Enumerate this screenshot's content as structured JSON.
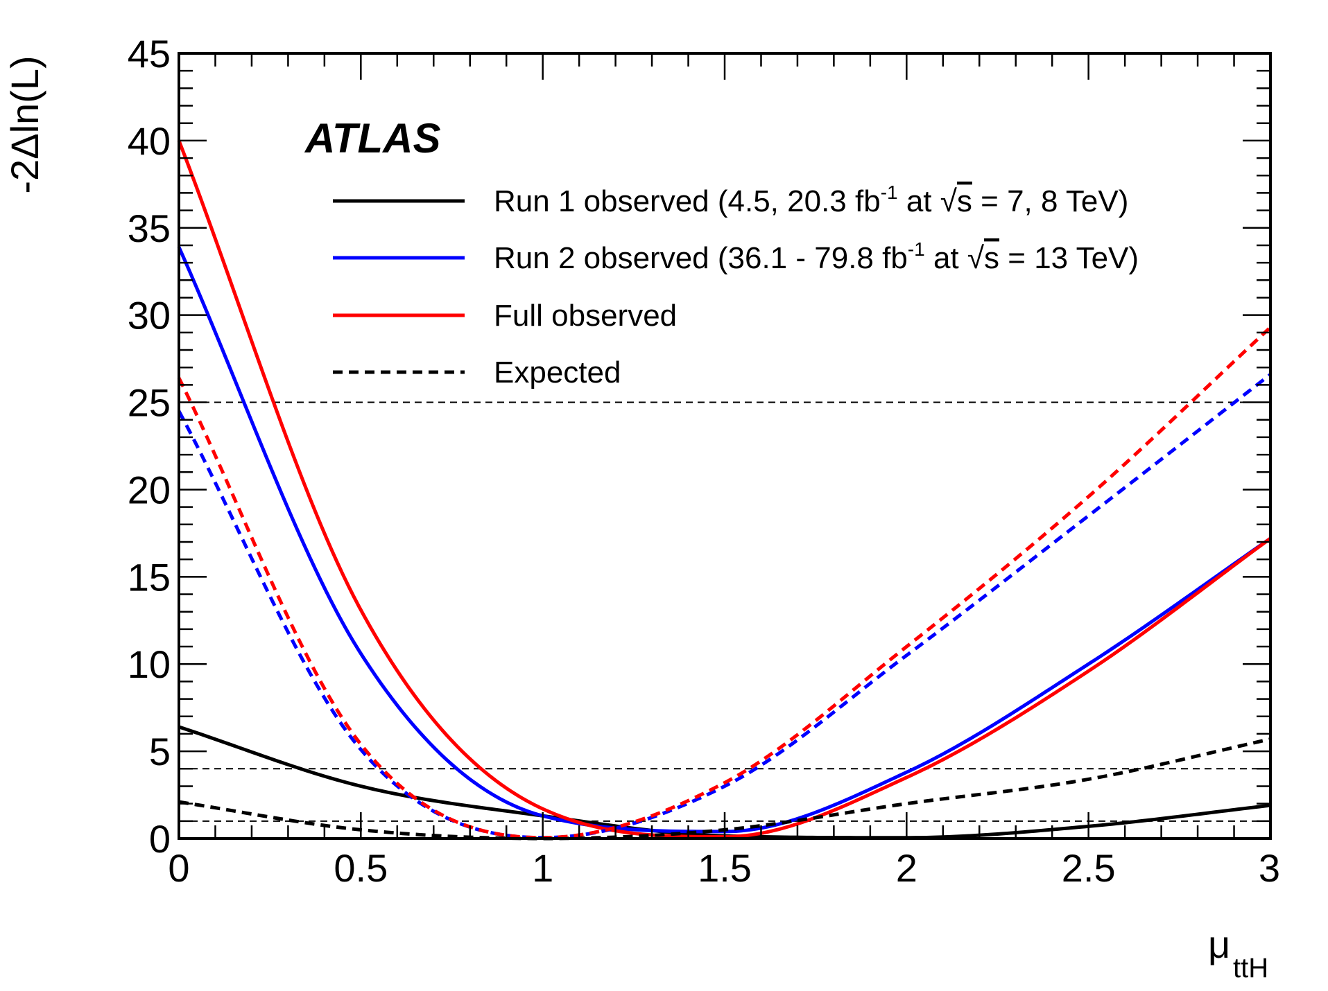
{
  "chart_data": {
    "type": "line",
    "brand": "ATLAS",
    "xlabel": {
      "main": "μ",
      "sub": "ttH"
    },
    "ylabel": "-2Δln(L)",
    "xlim": [
      0,
      3
    ],
    "ylim": [
      0,
      45
    ],
    "x_ticks": [
      0,
      0.5,
      1,
      1.5,
      2,
      2.5,
      3
    ],
    "x_tick_labels": [
      "0",
      "0.5",
      "1",
      "1.5",
      "2",
      "2.5",
      "3"
    ],
    "y_ticks": [
      0,
      5,
      10,
      15,
      20,
      25,
      30,
      35,
      40,
      45
    ],
    "y_tick_labels": [
      "0",
      "5",
      "10",
      "15",
      "20",
      "25",
      "30",
      "35",
      "40",
      "45"
    ],
    "reference_lines": [
      1,
      4,
      25
    ],
    "legend": {
      "run1": {
        "pre": "Run 1 observed (4.5, 20.3 fb",
        "sup": "-1",
        "mid": " at ",
        "root": "√",
        "s": "s",
        "post": " = 7, 8 TeV)"
      },
      "run2": {
        "pre": "Run 2 observed (36.1 - 79.8 fb",
        "sup": "-1",
        "mid": " at ",
        "root": "√",
        "s": "s",
        "post": " = 13 TeV)"
      },
      "full": "Full observed",
      "expected": "Expected"
    },
    "colors": {
      "run1": "#000000",
      "run2": "#0000ff",
      "full": "#ff0000"
    },
    "series": [
      {
        "name": "Run 1 observed",
        "color": "#000000",
        "dashed": false,
        "min_x": 1.75,
        "x": [
          0,
          0.5,
          1,
          1.5,
          2,
          2.5,
          3
        ],
        "y": [
          6.4,
          3.0,
          1.3,
          0.15,
          0.05,
          0.7,
          1.9
        ]
      },
      {
        "name": "Run 2 observed",
        "color": "#0000ff",
        "dashed": false,
        "min_x": 1.3,
        "x": [
          0,
          0.5,
          1,
          1.5,
          2,
          2.5,
          3
        ],
        "y": [
          33.9,
          10.6,
          1.3,
          0.4,
          3.8,
          10.0,
          17.2
        ]
      },
      {
        "name": "Full observed",
        "color": "#ff0000",
        "dashed": false,
        "min_x": 1.32,
        "x": [
          0,
          0.5,
          1,
          1.5,
          2,
          2.5,
          3
        ],
        "y": [
          40.0,
          13.1,
          1.7,
          0.1,
          3.5,
          9.6,
          17.2
        ]
      },
      {
        "name": "Run 1 expected",
        "color": "#000000",
        "dashed": true,
        "min_x": 1.0,
        "x": [
          0,
          0.5,
          1,
          1.5,
          2,
          2.5,
          3
        ],
        "y": [
          2.1,
          0.5,
          0.0,
          0.5,
          2.0,
          3.4,
          5.7
        ]
      },
      {
        "name": "Run 2 expected",
        "color": "#0000ff",
        "dashed": true,
        "min_x": 1.0,
        "x": [
          0,
          0.5,
          1,
          1.5,
          2,
          2.5,
          3
        ],
        "y": [
          24.5,
          5.1,
          0.05,
          3.0,
          10.5,
          18.5,
          26.6
        ]
      },
      {
        "name": "Full expected",
        "color": "#ff0000",
        "dashed": true,
        "min_x": 1.0,
        "x": [
          0,
          0.5,
          1,
          1.5,
          2,
          2.5,
          3
        ],
        "y": [
          26.4,
          5.4,
          0.05,
          3.2,
          11.0,
          19.6,
          29.3
        ]
      }
    ]
  }
}
